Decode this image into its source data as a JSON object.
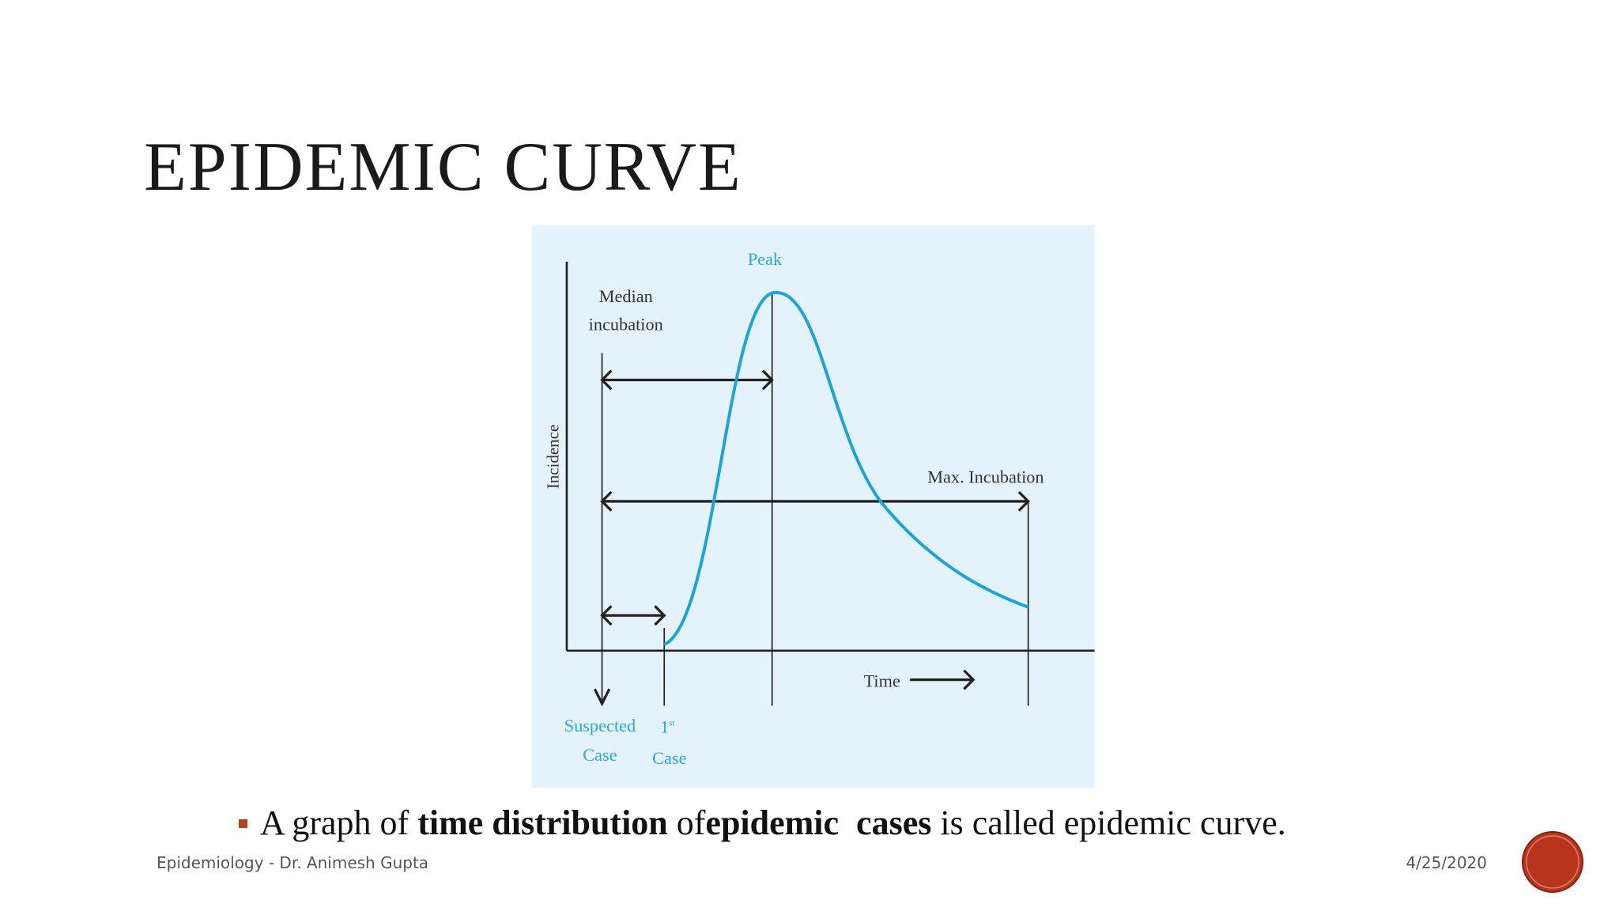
{
  "title": "EPIDEMIC CURVE",
  "diagram": {
    "y_axis_label": "Incidence",
    "x_axis_label": "Time",
    "peak": "Peak",
    "median_incubation": [
      "Median",
      "incubation"
    ],
    "max_incubation": "Max. Incubation",
    "suspected_case": [
      "Suspected",
      "Case"
    ],
    "first_case": {
      "number": "1",
      "suffix": "st",
      "word": "Case"
    }
  },
  "bullet": [
    "A graph of ",
    "time distribution",
    " of",
    "epidemic  cases",
    " is called epidemic curve."
  ],
  "footer": {
    "left": "Epidemiology - Dr. Animesh Gupta",
    "date": "4/25/2020"
  }
}
